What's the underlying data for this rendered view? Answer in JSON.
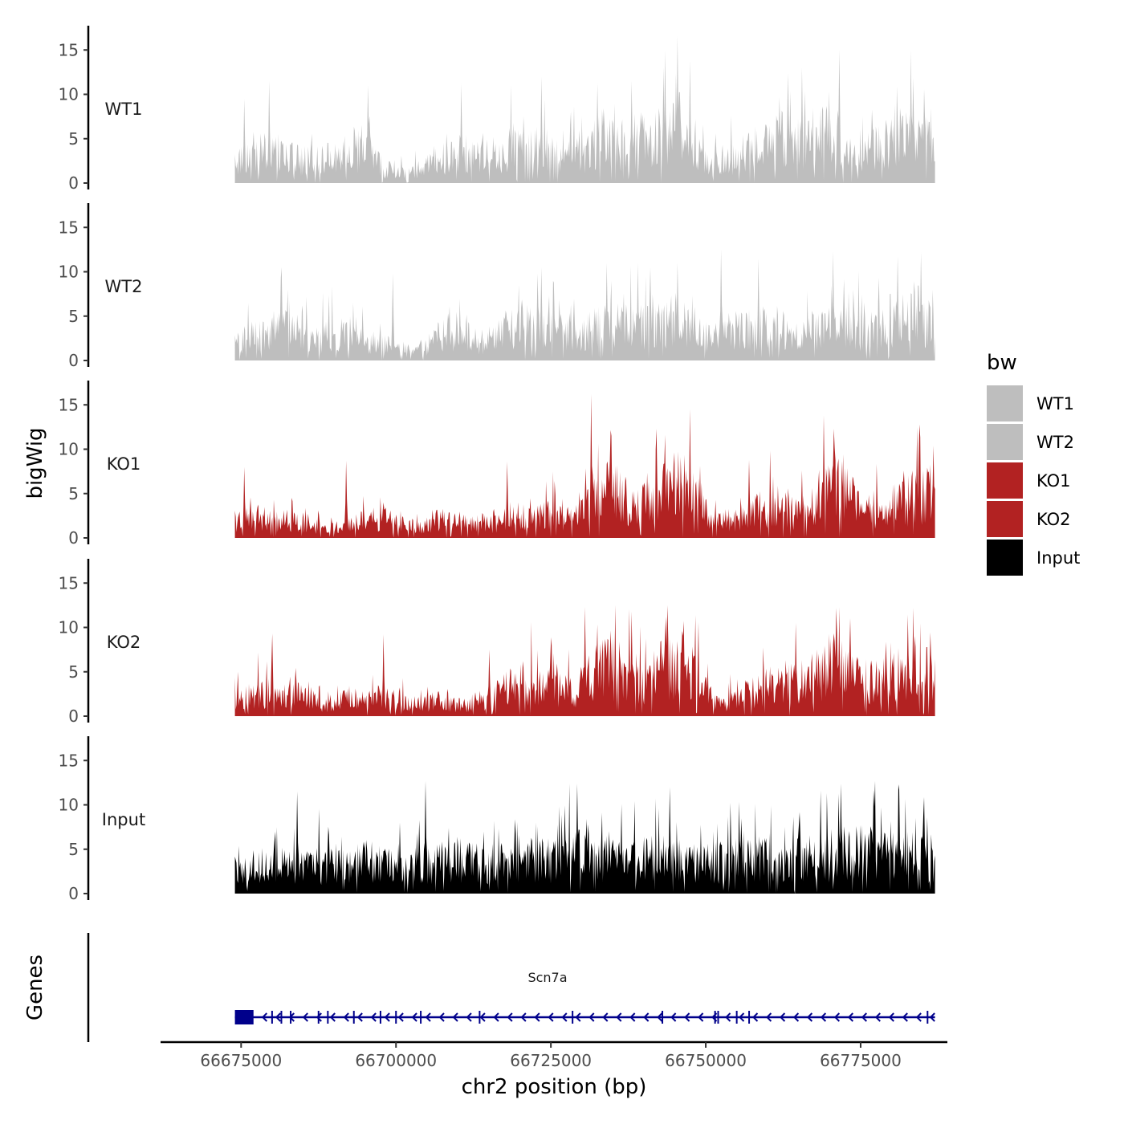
{
  "chart_data": {
    "type": "area",
    "chromosome": "chr2",
    "xlabel": "chr2 position (bp)",
    "ylabel": "bigWig",
    "genes_label": "Genes",
    "xlim": [
      66662000,
      66789000
    ],
    "data_range": [
      66674000,
      66787000
    ],
    "xticks": [
      66675000,
      66700000,
      66725000,
      66750000,
      66775000
    ],
    "xtick_labels": [
      "66675000",
      "66700000",
      "66725000",
      "66750000",
      "66775000"
    ],
    "ylim": [
      0,
      17.5
    ],
    "yticks": [
      0,
      5,
      10,
      15
    ],
    "ytick_labels": [
      "0",
      "5",
      "10",
      "15"
    ],
    "legend": {
      "title": "bw",
      "position": "right",
      "entries": [
        {
          "label": "WT1",
          "color": "#bebebe"
        },
        {
          "label": "WT2",
          "color": "#bebebe"
        },
        {
          "label": "KO1",
          "color": "#b22222"
        },
        {
          "label": "KO2",
          "color": "#b22222"
        },
        {
          "label": "Input",
          "color": "#000000"
        }
      ]
    },
    "series": [
      {
        "name": "WT1",
        "color": "#bebebe",
        "max": 16.6,
        "profile": [
          [
            66674000,
            3
          ],
          [
            66680000,
            4.5
          ],
          [
            66685000,
            3
          ],
          [
            66690000,
            3.5
          ],
          [
            66695000,
            4.5
          ],
          [
            66698000,
            2
          ],
          [
            66702000,
            1.5
          ],
          [
            66706000,
            3
          ],
          [
            66710000,
            4
          ],
          [
            66715000,
            3.5
          ],
          [
            66720000,
            5.5
          ],
          [
            66725000,
            4.5
          ],
          [
            66730000,
            4
          ],
          [
            66733000,
            6
          ],
          [
            66737000,
            5
          ],
          [
            66742000,
            6.5
          ],
          [
            66746000,
            7.5
          ],
          [
            66750000,
            2.5
          ],
          [
            66754000,
            3
          ],
          [
            66758000,
            5
          ],
          [
            66762000,
            6
          ],
          [
            66766000,
            5.5
          ],
          [
            66770000,
            7.5
          ],
          [
            66773000,
            4
          ],
          [
            66777000,
            5
          ],
          [
            66781000,
            5.5
          ],
          [
            66787000,
            6.5
          ]
        ],
        "peaks": [
          [
            66675500,
            9.5
          ],
          [
            66679500,
            11.5
          ],
          [
            66695500,
            11
          ],
          [
            66710500,
            11.2
          ],
          [
            66723500,
            12
          ],
          [
            66732500,
            11.2
          ],
          [
            66738000,
            11.5
          ],
          [
            66743200,
            13
          ],
          [
            66745500,
            16.6
          ],
          [
            66747500,
            13.8
          ],
          [
            66765500,
            13
          ],
          [
            66771500,
            15
          ],
          [
            66785200,
            10.6
          ]
        ]
      },
      {
        "name": "WT2",
        "color": "#bebebe",
        "max": 12.5,
        "profile": [
          [
            66674000,
            2.5
          ],
          [
            66678000,
            3.5
          ],
          [
            66682000,
            4.5
          ],
          [
            66686000,
            3
          ],
          [
            66690000,
            3.5
          ],
          [
            66695000,
            2.5
          ],
          [
            66700000,
            2
          ],
          [
            66703000,
            1
          ],
          [
            66706000,
            3
          ],
          [
            66710000,
            3.5
          ],
          [
            66715000,
            2.5
          ],
          [
            66720000,
            5
          ],
          [
            66725000,
            4.5
          ],
          [
            66730000,
            3.5
          ],
          [
            66735000,
            5.5
          ],
          [
            66740000,
            4.5
          ],
          [
            66745000,
            5
          ],
          [
            66748000,
            4.5
          ],
          [
            66752000,
            3
          ],
          [
            66756000,
            4
          ],
          [
            66760000,
            4.5
          ],
          [
            66765000,
            3.5
          ],
          [
            66770000,
            5
          ],
          [
            66775000,
            4
          ],
          [
            66780000,
            5.5
          ],
          [
            66784000,
            7
          ],
          [
            66787000,
            4
          ]
        ],
        "peaks": [
          [
            66681500,
            10.5
          ],
          [
            66699500,
            9.8
          ],
          [
            66723500,
            10.5
          ],
          [
            66734000,
            11
          ],
          [
            66739000,
            11
          ],
          [
            66745500,
            11
          ],
          [
            66752500,
            12.5
          ],
          [
            66758500,
            11.5
          ],
          [
            66770500,
            12.3
          ],
          [
            66781000,
            11.8
          ],
          [
            66784800,
            12.2
          ]
        ]
      },
      {
        "name": "KO1",
        "color": "#b22222",
        "max": 16.2,
        "profile": [
          [
            66674000,
            2.5
          ],
          [
            66680000,
            2.5
          ],
          [
            66686000,
            2
          ],
          [
            66689000,
            1
          ],
          [
            66693000,
            2
          ],
          [
            66698000,
            2.5
          ],
          [
            66702000,
            1.5
          ],
          [
            66707000,
            2.5
          ],
          [
            66712000,
            2
          ],
          [
            66716000,
            2
          ],
          [
            66720000,
            3
          ],
          [
            66724000,
            3.5
          ],
          [
            66728000,
            3
          ],
          [
            66732000,
            5.5
          ],
          [
            66735000,
            7
          ],
          [
            66738000,
            4
          ],
          [
            66742000,
            5.5
          ],
          [
            66745000,
            7.5
          ],
          [
            66748000,
            6.5
          ],
          [
            66751000,
            2
          ],
          [
            66756000,
            2.5
          ],
          [
            66760000,
            4
          ],
          [
            66764000,
            3
          ],
          [
            66768000,
            4.5
          ],
          [
            66771000,
            7
          ],
          [
            66775000,
            4
          ],
          [
            66779000,
            4
          ],
          [
            66783000,
            5
          ],
          [
            66786000,
            6
          ],
          [
            66787000,
            5.5
          ]
        ],
        "peaks": [
          [
            66675500,
            8
          ],
          [
            66692000,
            8.7
          ],
          [
            66718000,
            8.6
          ],
          [
            66731500,
            16.2
          ],
          [
            66742000,
            12.3
          ],
          [
            66747500,
            14.5
          ],
          [
            66757000,
            8.8
          ],
          [
            66769000,
            13.8
          ],
          [
            66784500,
            12.8
          ]
        ]
      },
      {
        "name": "KO2",
        "color": "#b22222",
        "max": 12.5,
        "profile": [
          [
            66674000,
            2.5
          ],
          [
            66680000,
            3
          ],
          [
            66684000,
            3.5
          ],
          [
            66688000,
            1.5
          ],
          [
            66692000,
            2.5
          ],
          [
            66697000,
            2.5
          ],
          [
            66702000,
            2
          ],
          [
            66707000,
            2
          ],
          [
            66711000,
            1.5
          ],
          [
            66715000,
            2.5
          ],
          [
            66720000,
            4.5
          ],
          [
            66725000,
            4
          ],
          [
            66729000,
            3
          ],
          [
            66732000,
            6
          ],
          [
            66735000,
            6.5
          ],
          [
            66740000,
            4
          ],
          [
            66743000,
            6.5
          ],
          [
            66746000,
            7.5
          ],
          [
            66749000,
            4.5
          ],
          [
            66752000,
            1.5
          ],
          [
            66756000,
            3
          ],
          [
            66760000,
            4
          ],
          [
            66764000,
            4.5
          ],
          [
            66768000,
            5.5
          ],
          [
            66771000,
            7.5
          ],
          [
            66774000,
            5
          ],
          [
            66778000,
            4.5
          ],
          [
            66782000,
            6
          ],
          [
            66785000,
            7
          ],
          [
            66787000,
            5
          ]
        ],
        "peaks": [
          [
            66680000,
            9.3
          ],
          [
            66698000,
            9.2
          ],
          [
            66715000,
            7.5
          ],
          [
            66730500,
            12.3
          ],
          [
            66738000,
            11.8
          ],
          [
            66743500,
            11.2
          ],
          [
            66764500,
            10.5
          ],
          [
            66771000,
            12.2
          ],
          [
            66783500,
            12.2
          ]
        ]
      },
      {
        "name": "Input",
        "color": "#000000",
        "max": 12.7,
        "profile": [
          [
            66674000,
            3
          ],
          [
            66680000,
            4
          ],
          [
            66685000,
            3.5
          ],
          [
            66690000,
            4
          ],
          [
            66695000,
            4.5
          ],
          [
            66700000,
            3.5
          ],
          [
            66705000,
            4
          ],
          [
            66710000,
            4.5
          ],
          [
            66715000,
            4
          ],
          [
            66720000,
            4.5
          ],
          [
            66725000,
            4.5
          ],
          [
            66730000,
            5.5
          ],
          [
            66735000,
            4.5
          ],
          [
            66740000,
            5
          ],
          [
            66745000,
            4.5
          ],
          [
            66750000,
            4
          ],
          [
            66755000,
            4.5
          ],
          [
            66760000,
            4.5
          ],
          [
            66765000,
            5
          ],
          [
            66770000,
            5
          ],
          [
            66775000,
            6
          ],
          [
            66780000,
            5.5
          ],
          [
            66784000,
            5
          ],
          [
            66787000,
            4.5
          ]
        ],
        "peaks": [
          [
            66684000,
            11.5
          ],
          [
            66704800,
            12.7
          ],
          [
            66729200,
            12.4
          ],
          [
            66744200,
            12
          ],
          [
            66768500,
            11.6
          ],
          [
            66771800,
            12.4
          ],
          [
            66785300,
            10.9
          ]
        ]
      }
    ],
    "gene_track": {
      "gene": "Scn7a",
      "color": "#00008b",
      "start": 66674000,
      "end": 66787000,
      "strand": "-",
      "first_exon": [
        66674000,
        66677000
      ],
      "exon_boundaries": [
        66680000,
        66681500,
        66683000,
        66687500,
        66689000,
        66693200,
        66697500,
        66700000,
        66704000,
        66713500,
        66728500,
        66743000,
        66751500,
        66752000,
        66755000,
        66757000,
        66785800
      ]
    }
  }
}
